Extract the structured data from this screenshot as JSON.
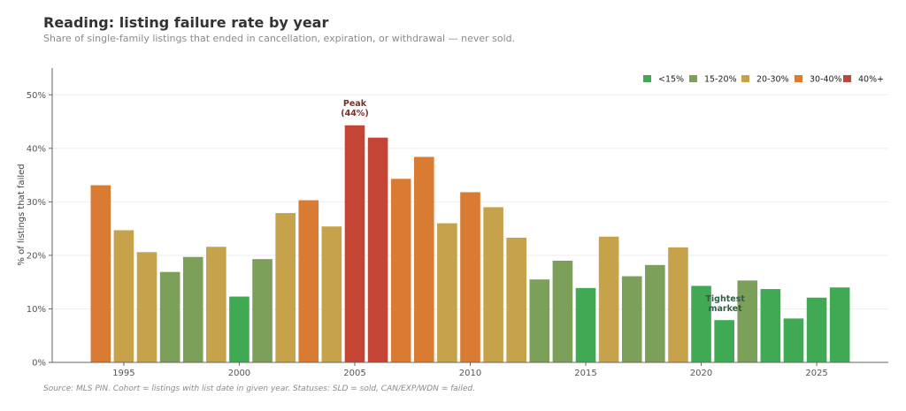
{
  "title": "Reading: listing failure rate by year",
  "subtitle": "Share of single-family listings that ended in cancellation, expiration, or withdrawal — never sold.",
  "source": "Source: MLS PIN. Cohort = listings with list date in given year. Statuses: SLD = sold, CAN/EXP/WDN = failed.",
  "chart_data": {
    "type": "bar",
    "title": "Reading: listing failure rate by year",
    "ylabel": "% of listings that failed",
    "xlabel": "",
    "ylim": [
      0,
      55
    ],
    "y_ticks": [
      0,
      10,
      20,
      30,
      40,
      50
    ],
    "y_tick_suffix": "%",
    "x_ticks": [
      1995,
      2000,
      2005,
      2010,
      2015,
      2020,
      2025
    ],
    "grid": "horizontal",
    "legend_position": "top-right",
    "legend": [
      {
        "label": "<15%",
        "color": "#3fa954"
      },
      {
        "label": "15-20%",
        "color": "#7c9f5a"
      },
      {
        "label": "20-30%",
        "color": "#c6a24b"
      },
      {
        "label": "30-40%",
        "color": "#d97b33"
      },
      {
        "label": "40%+",
        "color": "#c44536"
      }
    ],
    "years": [
      1994,
      1995,
      1996,
      1997,
      1998,
      1999,
      2000,
      2001,
      2002,
      2003,
      2004,
      2005,
      2006,
      2007,
      2008,
      2009,
      2010,
      2011,
      2012,
      2013,
      2014,
      2015,
      2016,
      2017,
      2018,
      2019,
      2020,
      2021,
      2022,
      2023,
      2024,
      2025,
      2026
    ],
    "values": [
      33.1,
      24.7,
      20.6,
      16.9,
      19.7,
      21.6,
      12.3,
      19.3,
      27.9,
      30.3,
      25.4,
      44.3,
      42.0,
      34.3,
      38.4,
      26.0,
      31.8,
      29.0,
      23.3,
      15.5,
      19.0,
      13.9,
      23.5,
      16.1,
      18.2,
      21.5,
      14.3,
      7.9,
      15.3,
      13.7,
      8.2,
      12.1,
      14.0
    ],
    "annotations": [
      {
        "text": "Peak\n(44%)",
        "x": 2005,
        "y": 44.3,
        "color": "#7a2e26"
      },
      {
        "text": "Tightest\nmarket",
        "x": 2021,
        "y": 7.9,
        "color": "#2f5e44"
      }
    ]
  }
}
